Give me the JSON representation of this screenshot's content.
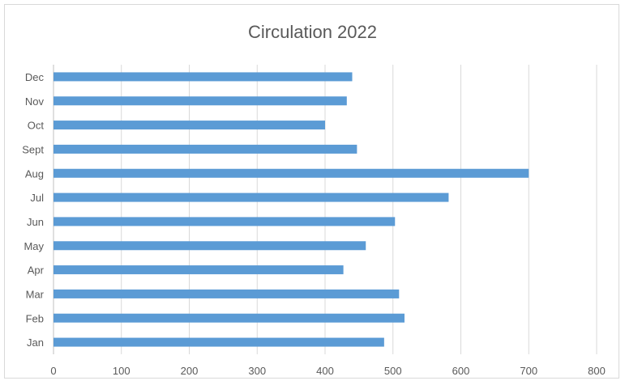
{
  "chart_data": {
    "type": "bar",
    "orientation": "horizontal",
    "title": "Circulation 2022",
    "xlabel": "",
    "ylabel": "",
    "categories": [
      "Jan",
      "Feb",
      "Mar",
      "Apr",
      "May",
      "Jun",
      "Jul",
      "Aug",
      "Sept",
      "Oct",
      "Nov",
      "Dec"
    ],
    "values": [
      487,
      517,
      509,
      427,
      460,
      503,
      582,
      700,
      447,
      400,
      432,
      440
    ],
    "xlim": [
      0,
      800
    ],
    "xticks": [
      0,
      100,
      200,
      300,
      400,
      500,
      600,
      700,
      800
    ],
    "grid": true,
    "legend": "none",
    "bar_color": "#5b9bd5",
    "grid_color": "#d9d9d9"
  }
}
